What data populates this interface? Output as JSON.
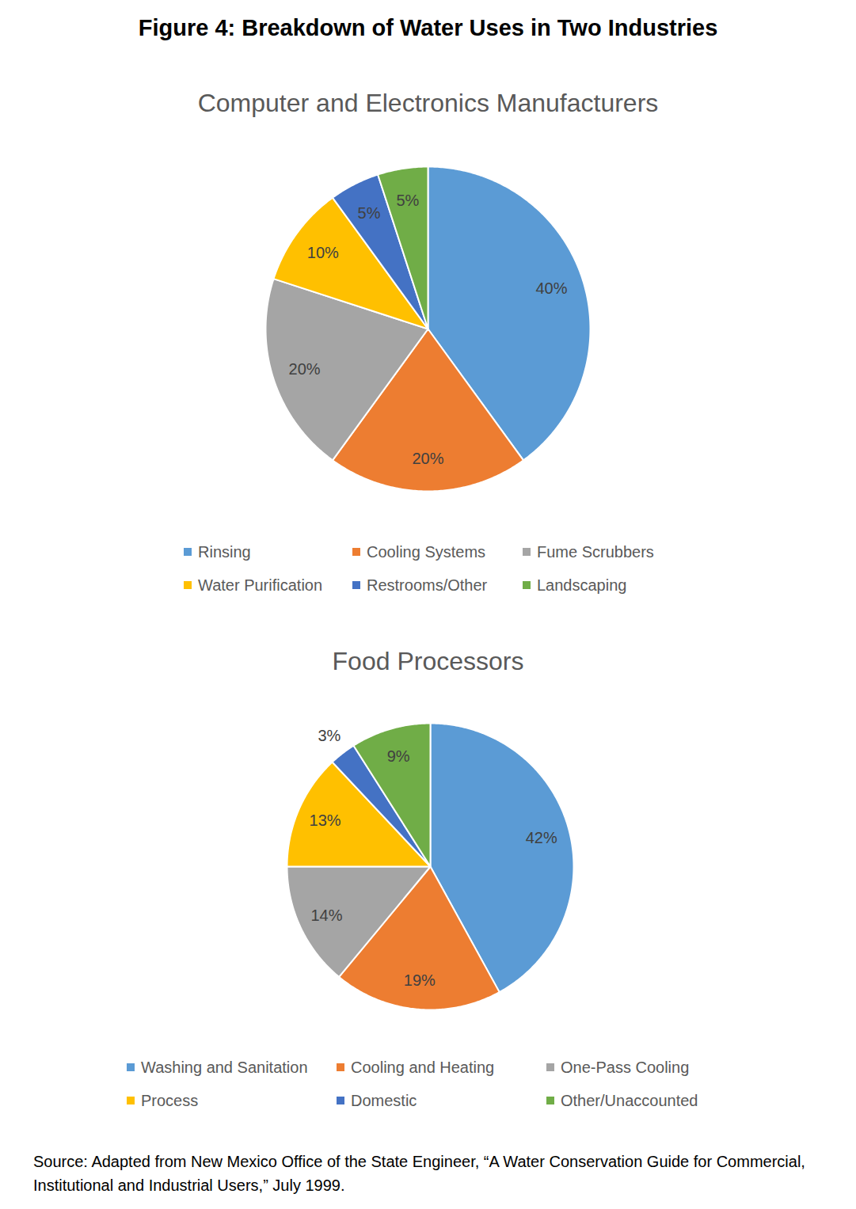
{
  "title": "Figure 4: Breakdown of Water Uses in Two Industries",
  "source": "Source: Adapted from New Mexico Office of the State Engineer, “A Water Conservation Guide for Commercial, Institutional and Industrial Users,” July 1999.",
  "chart_data": [
    {
      "type": "pie",
      "title": "Computer and Electronics Manufacturers",
      "categories": [
        "Rinsing",
        "Cooling Systems",
        "Fume Scrubbers",
        "Water Purification",
        "Restrooms/Other",
        "Landscaping"
      ],
      "values": [
        40,
        20,
        20,
        10,
        5,
        5
      ],
      "value_labels": [
        "40%",
        "20%",
        "20%",
        "10%",
        "5%",
        "5%"
      ],
      "colors": [
        "#5B9BD5",
        "#ED7D31",
        "#A5A5A5",
        "#FFC000",
        "#4472C4",
        "#70AD47"
      ],
      "data_labels": true,
      "legend": "bottom"
    },
    {
      "type": "pie",
      "title": "Food Processors",
      "categories": [
        "Washing and Sanitation",
        "Cooling and Heating",
        "One-Pass Cooling",
        "Process",
        "Domestic",
        "Other/Unaccounted"
      ],
      "values": [
        42,
        19,
        14,
        13,
        3,
        9
      ],
      "value_labels": [
        "42%",
        "19%",
        "14%",
        "13%",
        "3%",
        "9%"
      ],
      "colors": [
        "#5B9BD5",
        "#ED7D31",
        "#A5A5A5",
        "#FFC000",
        "#4472C4",
        "#70AD47"
      ],
      "data_labels": true,
      "legend": "bottom"
    }
  ]
}
